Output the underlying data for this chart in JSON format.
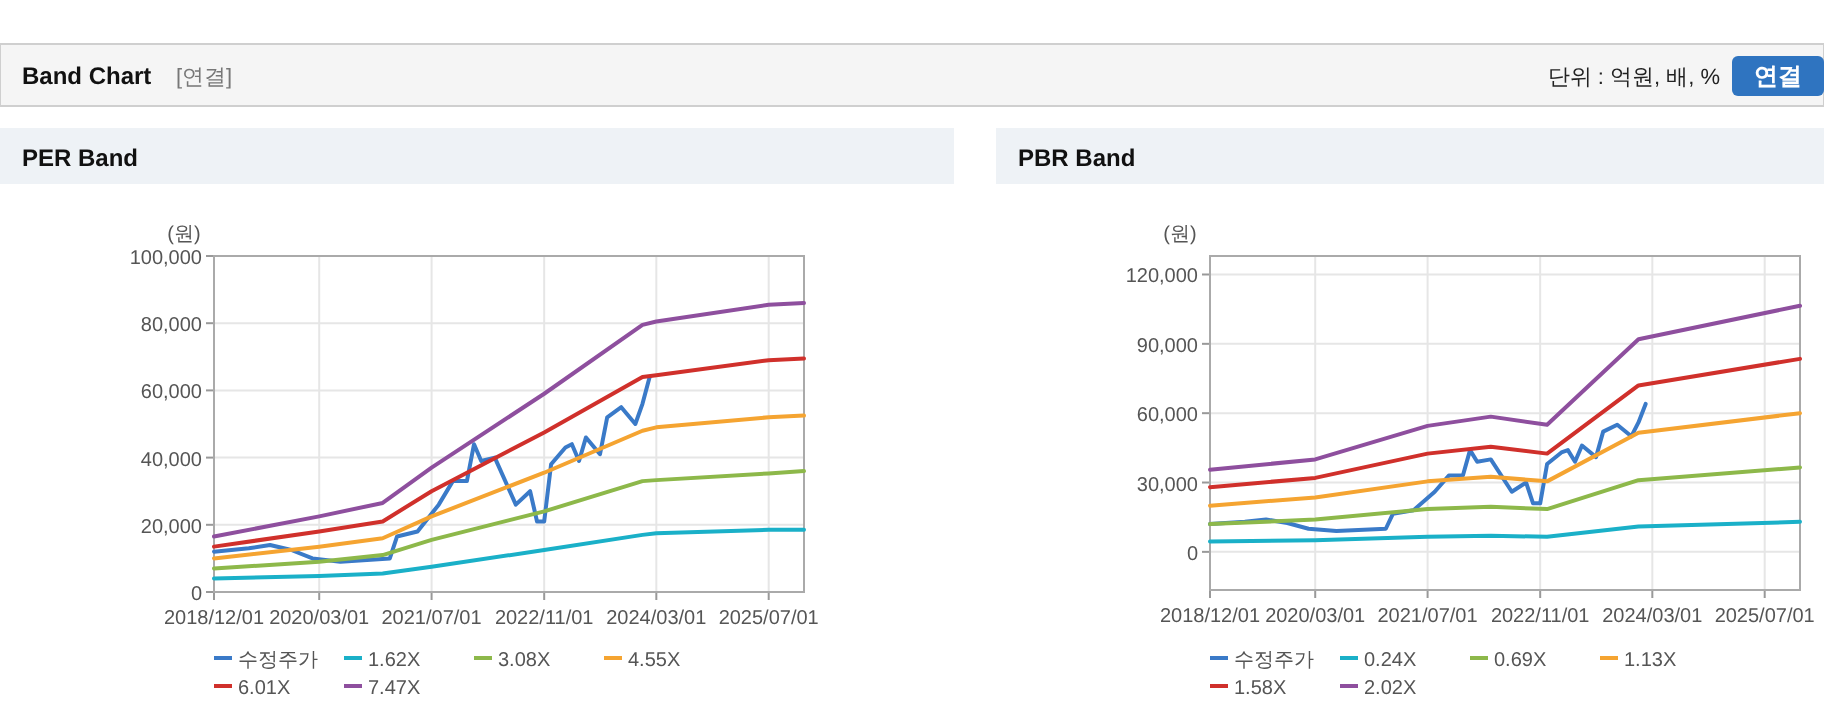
{
  "chart_data": [
    {
      "type": "line",
      "title": "PER Band",
      "ylabel": "(원)",
      "annotations": [
        "Band Chart",
        "[연결]",
        "단위 : 억원, 배, %",
        "연결"
      ],
      "x": [
        "2018-12-01",
        "2020-03-01",
        "2020-12-01",
        "2021-07-01",
        "2022-11-01",
        "2024-01-01",
        "2024-03-01",
        "2025-07-01",
        "2025-12-01"
      ],
      "xlim": [
        "2018-12-01",
        "2025-12-01"
      ],
      "xticks": [
        {
          "value": "2018-12-01",
          "label": "2018/12/01"
        },
        {
          "value": "2020-03-01",
          "label": "2020/03/01"
        },
        {
          "value": "2021-07-01",
          "label": "2021/07/01"
        },
        {
          "value": "2022-11-01",
          "label": "2022/11/01"
        },
        {
          "value": "2024-03-01",
          "label": "2024/03/01"
        },
        {
          "value": "2025-07-01",
          "label": "2025/07/01"
        }
      ],
      "ylim": [
        0,
        100000
      ],
      "yticks": [
        0,
        {
          "value": 20000,
          "label": "20,000"
        },
        {
          "value": 40000,
          "label": "40,000"
        },
        {
          "value": 60000,
          "label": "60,000"
        },
        {
          "value": 80000,
          "label": "80,000"
        },
        {
          "value": 100000,
          "label": "100,000"
        }
      ],
      "grid": true,
      "legend": "bottom",
      "marker": "none",
      "line_style": "solid",
      "series": [
        {
          "name": "수정주가",
          "color": "#3a7ac8",
          "x": [
            "2018-12-01",
            "2019-05-01",
            "2019-08-01",
            "2019-11-01",
            "2020-02-01",
            "2020-06-01",
            "2021-01-01",
            "2021-02-01",
            "2021-05-01",
            "2021-08-01",
            "2021-10-01",
            "2021-12-01",
            "2022-01-01",
            "2022-02-01",
            "2022-04-01",
            "2022-07-01",
            "2022-09-01",
            "2022-10-01",
            "2022-11-01",
            "2022-12-01",
            "2023-02-01",
            "2023-03-01",
            "2023-04-01",
            "2023-05-01",
            "2023-07-01",
            "2023-08-01",
            "2023-10-01",
            "2023-12-01",
            "2024-01-01",
            "2024-02-01"
          ],
          "values": [
            12000,
            13000,
            14000,
            12500,
            10000,
            9000,
            10000,
            16500,
            18000,
            26000,
            33000,
            33000,
            44000,
            39000,
            40000,
            26000,
            30000,
            21000,
            21000,
            38000,
            43000,
            44000,
            39000,
            46000,
            41000,
            52000,
            55000,
            50000,
            56000,
            64000
          ]
        },
        {
          "name": "1.62X",
          "color": "#1ab0c8",
          "values": [
            4000,
            4800,
            5500,
            7500,
            12500,
            17000,
            17500,
            18500,
            18500
          ]
        },
        {
          "name": "3.08X",
          "color": "#8db84a",
          "values": [
            7000,
            9000,
            11000,
            15500,
            24000,
            33000,
            33300,
            35300,
            36000
          ]
        },
        {
          "name": "4.55X",
          "color": "#f5a431",
          "values": [
            10000,
            13500,
            16000,
            22500,
            35500,
            48000,
            49000,
            52000,
            52500
          ]
        },
        {
          "name": "6.01X",
          "color": "#d0302b",
          "values": [
            13500,
            18000,
            21000,
            30000,
            47500,
            64000,
            64500,
            69000,
            69500
          ]
        },
        {
          "name": "7.47X",
          "color": "#8e4f9e",
          "values": [
            16500,
            22500,
            26500,
            37000,
            59000,
            79500,
            80500,
            85500,
            86000
          ]
        }
      ]
    },
    {
      "type": "line",
      "title": "PBR Band",
      "ylabel": "(원)",
      "x": [
        "2018-12-01",
        "2020-03-01",
        "2021-07-01",
        "2022-04-01",
        "2022-12-01",
        "2024-01-01",
        "2025-12-01"
      ],
      "xlim": [
        "2018-12-01",
        "2025-12-01"
      ],
      "xticks": [
        {
          "value": "2018-12-01",
          "label": "2018/12/01"
        },
        {
          "value": "2020-03-01",
          "label": "2020/03/01"
        },
        {
          "value": "2021-07-01",
          "label": "2021/07/01"
        },
        {
          "value": "2022-11-01",
          "label": "2022/11/01"
        },
        {
          "value": "2024-03-01",
          "label": "2024/03/01"
        },
        {
          "value": "2025-07-01",
          "label": "2025/07/01"
        }
      ],
      "ylim": [
        -16500,
        128000
      ],
      "yticks": [
        0,
        {
          "value": 30000,
          "label": "30,000"
        },
        {
          "value": 60000,
          "label": "60,000"
        },
        {
          "value": 90000,
          "label": "90,000"
        },
        {
          "value": 120000,
          "label": "120,000"
        }
      ],
      "grid": true,
      "legend": "bottom",
      "marker": "none",
      "line_style": "solid",
      "series": [
        {
          "name": "수정주가",
          "color": "#3a7ac8",
          "x": [
            "2018-12-01",
            "2019-05-01",
            "2019-08-01",
            "2019-11-01",
            "2020-02-01",
            "2020-06-01",
            "2021-01-01",
            "2021-02-01",
            "2021-05-01",
            "2021-08-01",
            "2021-10-01",
            "2021-12-01",
            "2022-01-01",
            "2022-02-01",
            "2022-04-01",
            "2022-07-01",
            "2022-09-01",
            "2022-10-01",
            "2022-11-01",
            "2022-12-01",
            "2023-02-01",
            "2023-03-01",
            "2023-04-01",
            "2023-05-01",
            "2023-07-01",
            "2023-08-01",
            "2023-10-01",
            "2023-12-01",
            "2024-01-01",
            "2024-02-01"
          ],
          "values": [
            12000,
            13000,
            14000,
            12500,
            10000,
            9000,
            10000,
            16500,
            18000,
            26000,
            33000,
            33000,
            44000,
            39000,
            40000,
            26000,
            30000,
            21000,
            21000,
            38000,
            43000,
            44000,
            39000,
            46000,
            41000,
            52000,
            55000,
            50000,
            56000,
            64000
          ]
        },
        {
          "name": "0.24X",
          "color": "#1ab0c8",
          "values": [
            4500,
            5000,
            6500,
            7000,
            6500,
            11000,
            13000
          ]
        },
        {
          "name": "0.69X",
          "color": "#8db84a",
          "values": [
            12000,
            14000,
            18500,
            19500,
            18500,
            31000,
            36500
          ]
        },
        {
          "name": "1.13X",
          "color": "#f5a431",
          "values": [
            20000,
            23500,
            30500,
            32500,
            30500,
            51500,
            60000
          ]
        },
        {
          "name": "1.58X",
          "color": "#d0302b",
          "values": [
            28000,
            32000,
            42500,
            45500,
            42500,
            72000,
            83500
          ]
        },
        {
          "name": "2.02X",
          "color": "#8e4f9e",
          "values": [
            35500,
            40000,
            54500,
            58500,
            55000,
            92000,
            106500
          ]
        }
      ]
    }
  ]
}
